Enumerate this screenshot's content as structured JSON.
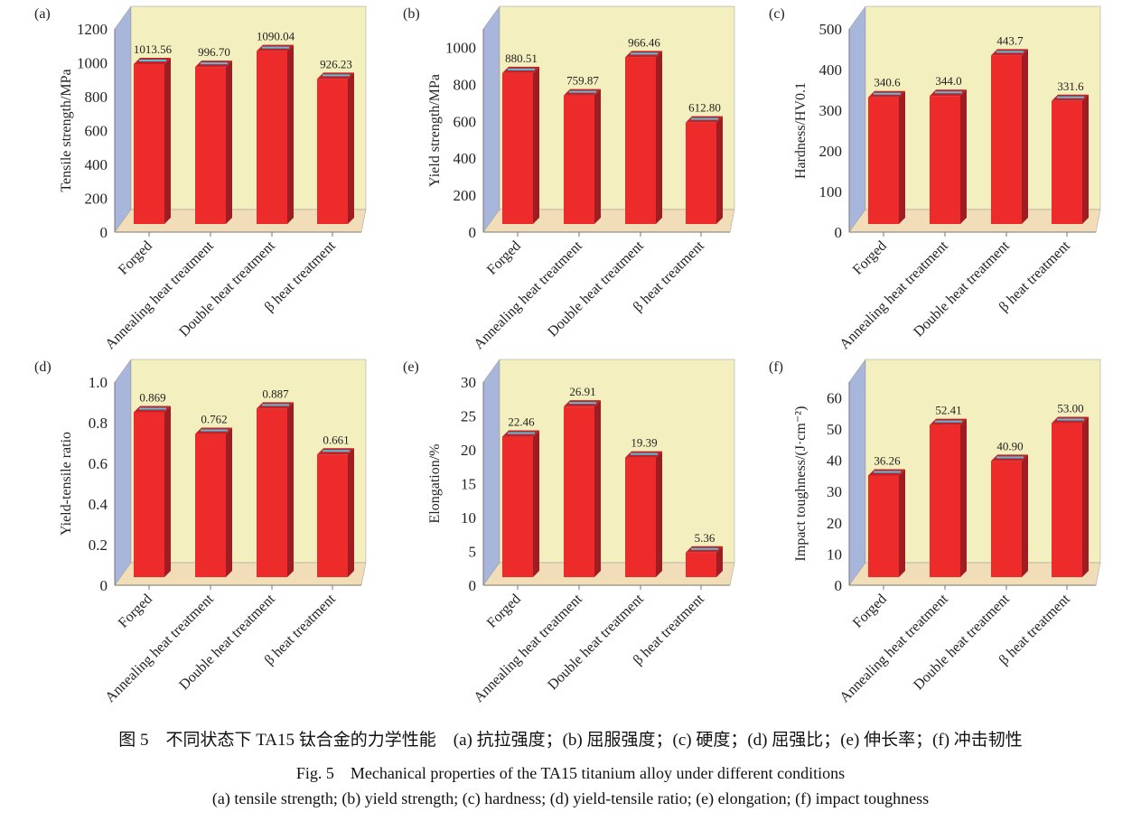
{
  "colors": {
    "bar_front": "#ee2b2b",
    "bar_side": "#9e1c22",
    "bar_top": "#c0242a",
    "back_wall": "#f3efbf",
    "side_wall": "#a9b6dc",
    "floor": "#f1ddb8",
    "error_bar": "#4fc3e0"
  },
  "chart_data": [
    {
      "type": "bar",
      "panel_label": "(a)",
      "ylabel": "Tensile strength/MPa",
      "categories": [
        "Forged",
        "Annealing heat treatment",
        "Double heat treatment",
        "β heat treatment"
      ],
      "values": [
        1013.56,
        996.7,
        1090.04,
        926.23
      ],
      "data_labels": [
        "1013.56",
        "996.70",
        "1090.04",
        "926.23"
      ],
      "yticks": [
        "0",
        "200",
        "400",
        "600",
        "800",
        "1000",
        "1200"
      ],
      "ylim": [
        0,
        1200
      ],
      "tick_step": 200
    },
    {
      "type": "bar",
      "panel_label": "(b)",
      "ylabel": "Yield strength/MPa",
      "categories": [
        "Forged",
        "Annealing heat treatment",
        "Double heat treatment",
        "β heat treatment"
      ],
      "values": [
        880.51,
        759.87,
        966.46,
        612.8
      ],
      "data_labels": [
        "880.51",
        "759.87",
        "966.46",
        "612.80"
      ],
      "yticks": [
        "0",
        "200",
        "400",
        "600",
        "800",
        "1000"
      ],
      "ylim": [
        0,
        1100
      ],
      "tick_step": 200
    },
    {
      "type": "bar",
      "panel_label": "(c)",
      "ylabel": "Hardness/HV0.1",
      "categories": [
        "Forged",
        "Annealing heat treatment",
        "Double heat treatment",
        "β heat treatment"
      ],
      "values": [
        340.6,
        344.0,
        443.7,
        331.6
      ],
      "data_labels": [
        "340.6",
        "344.0",
        "443.7",
        "331.6"
      ],
      "yticks": [
        "0",
        "100",
        "200",
        "300",
        "400",
        "500"
      ],
      "ylim": [
        0,
        500
      ],
      "tick_step": 100
    },
    {
      "type": "bar",
      "panel_label": "(d)",
      "ylabel": "Yield-tensile ratio",
      "categories": [
        "Forged",
        "Annealing heat treatment",
        "Double heat treatment",
        "β heat treatment"
      ],
      "values": [
        0.869,
        0.762,
        0.887,
        0.661
      ],
      "data_labels": [
        "0.869",
        "0.762",
        "0.887",
        "0.661"
      ],
      "yticks": [
        "0",
        "0.2",
        "0.4",
        "0.6",
        "0.8",
        "1.0"
      ],
      "ylim": [
        0,
        1.0
      ],
      "tick_step": 0.2
    },
    {
      "type": "bar",
      "panel_label": "(e)",
      "ylabel": "Elongation/%",
      "categories": [
        "Forged",
        "Annealing heat treatment",
        "Double heat treatment",
        "β heat treatment"
      ],
      "values": [
        22.46,
        26.91,
        19.39,
        5.36
      ],
      "data_labels": [
        "22.46",
        "26.91",
        "19.39",
        "5.36"
      ],
      "yticks": [
        "0",
        "5",
        "10",
        "15",
        "20",
        "25",
        "30"
      ],
      "ylim": [
        0,
        30
      ],
      "tick_step": 5
    },
    {
      "type": "bar",
      "panel_label": "(f)",
      "ylabel": "Impact toughness/(J·cm⁻²)",
      "categories": [
        "Forged",
        "Annealing heat treatment",
        "Double heat treatment",
        "β heat treatment"
      ],
      "values": [
        36.26,
        52.41,
        40.9,
        53.0
      ],
      "data_labels": [
        "36.26",
        "52.41",
        "40.90",
        "53.00"
      ],
      "yticks": [
        "0",
        "10",
        "20",
        "30",
        "40",
        "50",
        "60"
      ],
      "ylim": [
        0,
        65
      ],
      "tick_step": 10
    }
  ],
  "caption": {
    "cn": "图 5　不同状态下 TA15 钛合金的力学性能　(a) 抗拉强度；(b) 屈服强度；(c) 硬度；(d) 屈强比；(e) 伸长率；(f) 冲击韧性",
    "en_title": "Fig. 5　Mechanical properties of the TA15 titanium alloy under different conditions",
    "en_sub": "(a) tensile strength; (b) yield strength; (c) hardness; (d) yield-tensile ratio; (e) elongation; (f) impact toughness"
  }
}
